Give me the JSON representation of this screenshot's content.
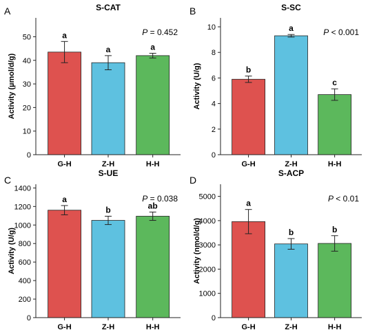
{
  "chart_data": [
    {
      "panel_letter": "A",
      "type": "bar",
      "title": "S-CAT",
      "ylabel": "Activity (µmol/d/g)",
      "xlabel": "",
      "categories": [
        "G-H",
        "Z-H",
        "H-H"
      ],
      "values": [
        43.5,
        39.0,
        42.0
      ],
      "errors": [
        4.5,
        3.0,
        1.0
      ],
      "letters": [
        "a",
        "a",
        "a"
      ],
      "pvalue": {
        "italic": "P",
        "rest": " = 0.452"
      },
      "ylim": [
        0,
        58
      ],
      "yticks": [
        0,
        10,
        20,
        30,
        40,
        50
      ],
      "grid": false,
      "colors": [
        "#de524f",
        "#5ec1e0",
        "#5cb85c"
      ]
    },
    {
      "panel_letter": "B",
      "type": "bar",
      "title": "S-SC",
      "ylabel": "Activity (U/g)",
      "xlabel": "",
      "categories": [
        "G-H",
        "Z-H",
        "H-H"
      ],
      "values": [
        5.9,
        9.3,
        4.7
      ],
      "errors": [
        0.25,
        0.1,
        0.45
      ],
      "letters": [
        "b",
        "a",
        "c"
      ],
      "pvalue": {
        "italic": "P",
        "rest": " < 0.001"
      },
      "ylim": [
        0,
        10.7
      ],
      "yticks": [
        0,
        2,
        4,
        6,
        8,
        10
      ],
      "grid": false,
      "colors": [
        "#de524f",
        "#5ec1e0",
        "#5cb85c"
      ]
    },
    {
      "panel_letter": "C",
      "type": "bar",
      "title": "S-UE",
      "ylabel": "Activity (U/g)",
      "xlabel": "",
      "categories": [
        "G-H",
        "Z-H",
        "H-H"
      ],
      "values": [
        1160,
        1050,
        1095
      ],
      "errors": [
        50,
        45,
        45
      ],
      "letters": [
        "a",
        "b",
        "ab"
      ],
      "pvalue": {
        "italic": "P",
        "rest": " = 0.038"
      },
      "ylim": [
        0,
        1440
      ],
      "yticks": [
        0,
        200,
        400,
        600,
        800,
        1000,
        1200,
        1400
      ],
      "grid": false,
      "colors": [
        "#de524f",
        "#5ec1e0",
        "#5cb85c"
      ]
    },
    {
      "panel_letter": "D",
      "type": "bar",
      "title": "S-ACP",
      "ylabel": "Activity (nmol/d/g)",
      "xlabel": "",
      "categories": [
        "G-H",
        "Z-H",
        "H-H"
      ],
      "values": [
        3960,
        3040,
        3060
      ],
      "errors": [
        500,
        220,
        320
      ],
      "letters": [
        "a",
        "b",
        "b"
      ],
      "pvalue": {
        "italic": "P",
        "rest": " < 0.01"
      },
      "ylim": [
        0,
        5500
      ],
      "yticks": [
        0,
        1000,
        2000,
        3000,
        4000,
        5000
      ],
      "grid": false,
      "colors": [
        "#de524f",
        "#5ec1e0",
        "#5cb85c"
      ]
    }
  ]
}
